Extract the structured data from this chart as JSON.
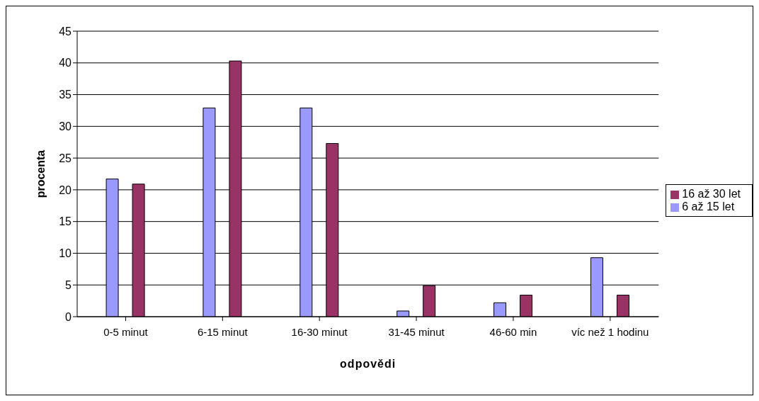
{
  "chart_data": {
    "type": "bar",
    "xlabel": "odpovědi",
    "ylabel": "procenta",
    "categories": [
      "0-5 minut",
      "6-15 minut",
      "16-30 minut",
      "31-45 minut",
      "46-60 min",
      "víc než 1 hodinu"
    ],
    "series": [
      {
        "name": "6 až 15 let",
        "color": "#9999ff",
        "values": [
          21.7,
          32.9,
          32.9,
          0.9,
          2.2,
          9.3
        ]
      },
      {
        "name": "16 až 30 let",
        "color": "#993366",
        "values": [
          20.9,
          40.3,
          27.3,
          4.9,
          3.4,
          3.4
        ]
      }
    ],
    "ylim": [
      0,
      45
    ],
    "yticks": [
      0,
      5,
      10,
      15,
      20,
      25,
      30,
      35,
      40,
      45
    ],
    "grid": "y",
    "legend": "right"
  }
}
